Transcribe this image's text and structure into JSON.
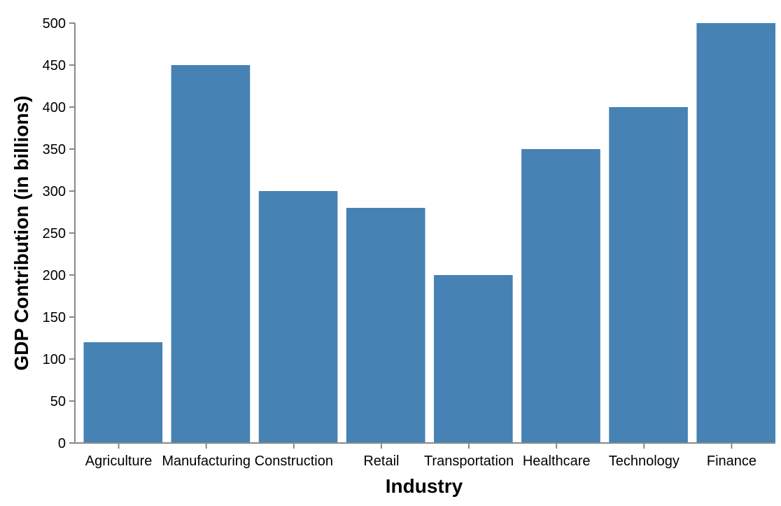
{
  "chart_data": {
    "type": "bar",
    "categories": [
      "Agriculture",
      "Manufacturing",
      "Construction",
      "Retail",
      "Transportation",
      "Healthcare",
      "Technology",
      "Finance"
    ],
    "values": [
      120,
      450,
      300,
      280,
      200,
      350,
      400,
      500
    ],
    "xlabel": "Industry",
    "ylabel": "GDP Contribution (in billions)",
    "ylim": [
      0,
      500
    ],
    "yticks": [
      0,
      50,
      100,
      150,
      200,
      250,
      300,
      350,
      400,
      450,
      500
    ],
    "grid": false,
    "legend": "none",
    "bar_color": "#4682b4"
  }
}
